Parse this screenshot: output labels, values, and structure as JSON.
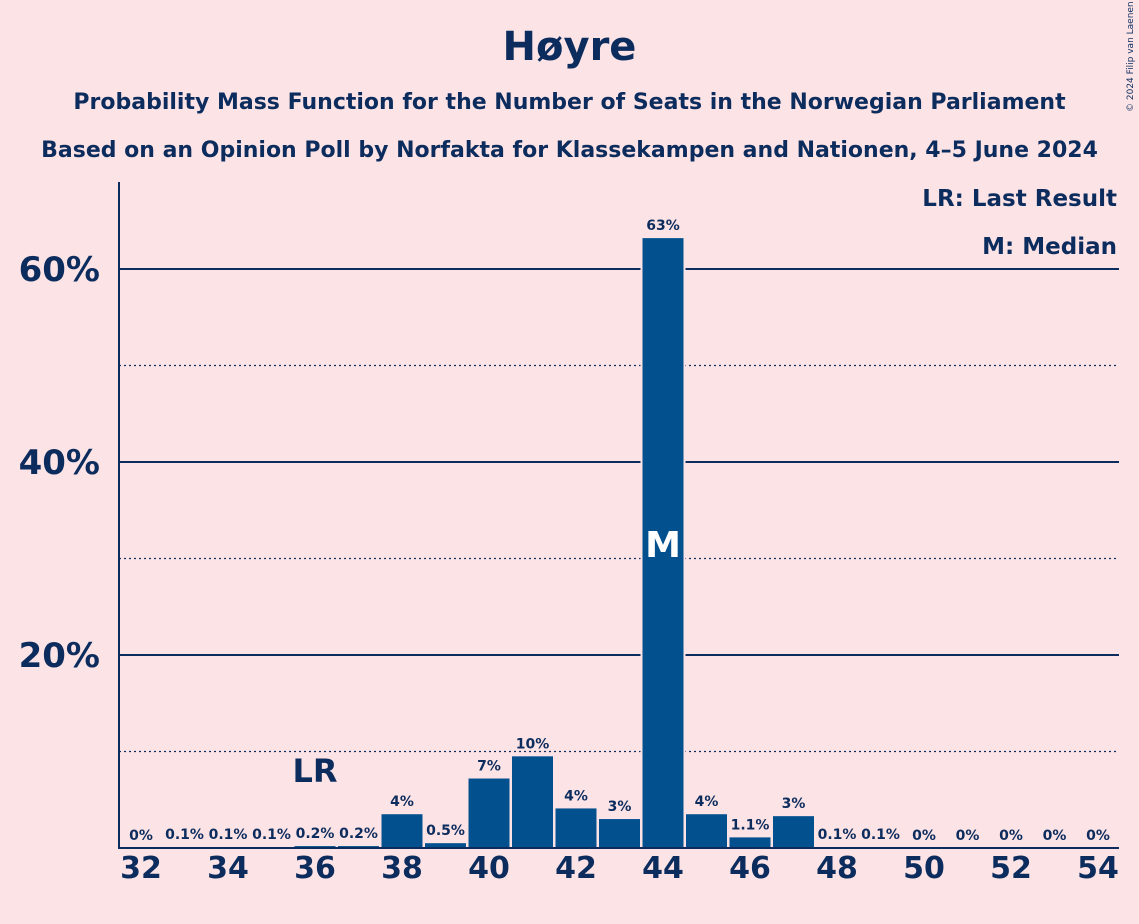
{
  "title": "Høyre",
  "subtitle1": "Probability Mass Function for the Number of Seats in the Norwegian Parliament",
  "subtitle2": "Based on an Opinion Poll by Norfakta for Klassekampen and Nationen, 4–5 June 2024",
  "legend": {
    "last_result": "LR: Last Result",
    "median": "M: Median"
  },
  "copyright": "© 2024 Filip van Laenen",
  "colors": {
    "background": "#fce4e6",
    "bar": "#03508f",
    "text": "#0d2c5e"
  },
  "chart_data": {
    "type": "bar",
    "x": [
      32,
      33,
      34,
      35,
      36,
      37,
      38,
      39,
      40,
      41,
      42,
      43,
      44,
      45,
      46,
      47,
      48,
      49,
      50,
      51,
      52,
      53,
      54
    ],
    "values": [
      0,
      0.1,
      0.1,
      0.1,
      0.2,
      0.2,
      3.5,
      0.5,
      7.2,
      9.5,
      4.1,
      3.0,
      63.2,
      3.5,
      1.1,
      3.3,
      0.1,
      0.1,
      0,
      0,
      0,
      0,
      0
    ],
    "labels": [
      "0%",
      "0.1%",
      "0.1%",
      "0.1%",
      "0.2%",
      "0.2%",
      "4%",
      "0.5%",
      "7%",
      "10%",
      "4%",
      "3%",
      "63%",
      "4%",
      "1.1%",
      "3%",
      "0.1%",
      "0.1%",
      "0%",
      "0%",
      "0%",
      "0%",
      "0%"
    ],
    "x_ticks": [
      32,
      34,
      36,
      38,
      40,
      42,
      44,
      46,
      48,
      50,
      52,
      54
    ],
    "y_ticks": [
      20,
      40,
      60
    ],
    "y_tick_labels": [
      "20%",
      "40%",
      "60%"
    ],
    "y_minor_gridlines": [
      10,
      30,
      50
    ],
    "ylim": [
      0,
      69
    ],
    "last_result_seat": 36,
    "last_result_label": "LR",
    "median_seat": 44,
    "median_label": "M",
    "grid": true
  }
}
